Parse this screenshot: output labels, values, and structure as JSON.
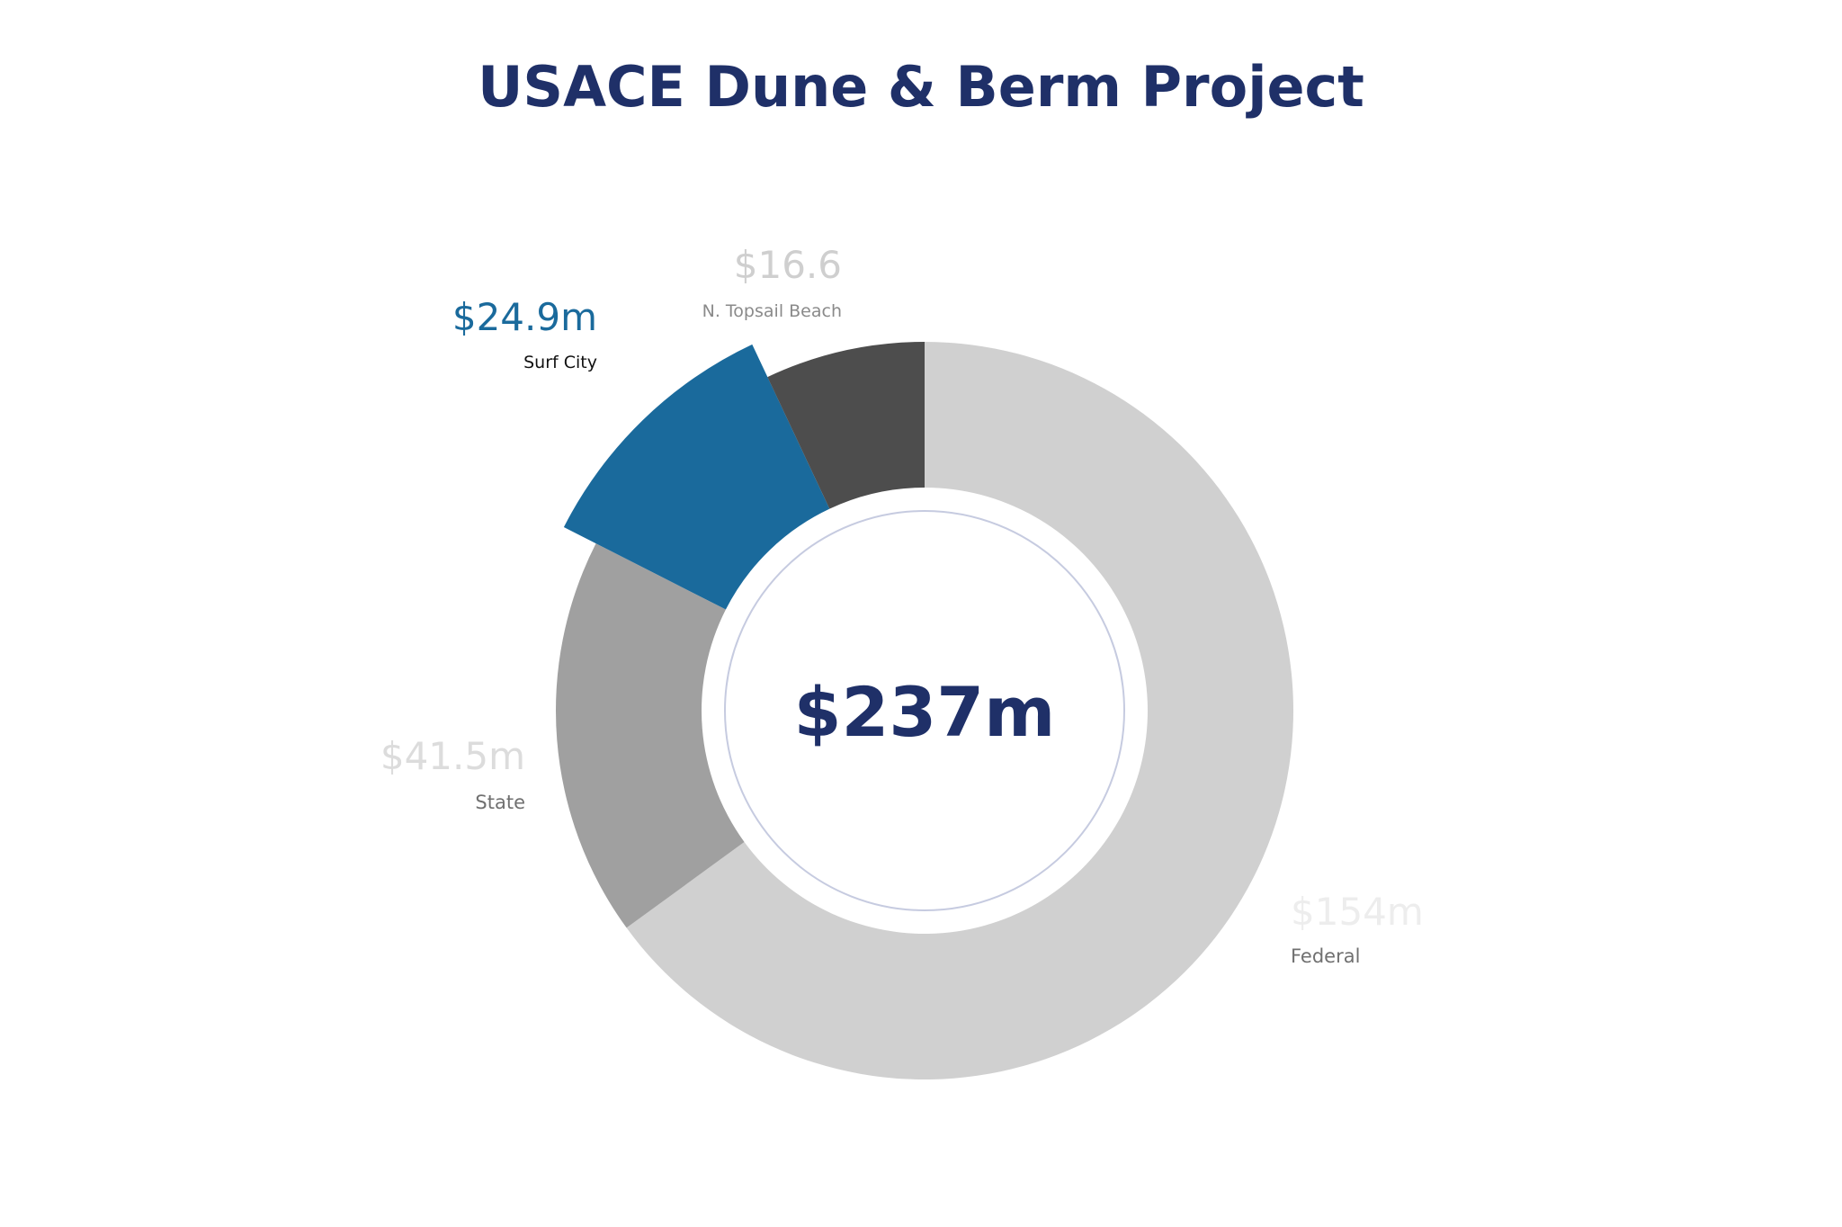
{
  "chart_data": {
    "type": "pie",
    "style": "donut",
    "title": "USACE Dune & Berm Project",
    "center_label": "$237m",
    "start_at": "top, clockwise",
    "highlighted_slice": "Surf City",
    "slices": [
      {
        "name": "Federal",
        "value": 154,
        "value_label": "$154m",
        "color": "#d0d0d0",
        "value_label_color": "#ededed",
        "name_label_color": "#707070"
      },
      {
        "name": "State",
        "value": 41.5,
        "value_label": "$41.5m",
        "color": "#a0a0a0",
        "value_label_color": "#dcdcdc",
        "name_label_color": "#707070"
      },
      {
        "name": "Surf City",
        "value": 24.9,
        "value_label": "$24.9m",
        "color": "#1a6a9c",
        "value_label_color": "#1a6a9c",
        "name_label_color": "#111111"
      },
      {
        "name": "N. Topsail Beach",
        "value": 16.6,
        "value_label": "$16.6",
        "color": "#4d4d4d",
        "value_label_color": "#cfcfcf",
        "name_label_color": "#8a8a8a"
      }
    ],
    "colors": {
      "title": "#1f3068",
      "center_label": "#1f3068",
      "center_ring": "#c6cbe0",
      "background": "#ffffff"
    }
  }
}
